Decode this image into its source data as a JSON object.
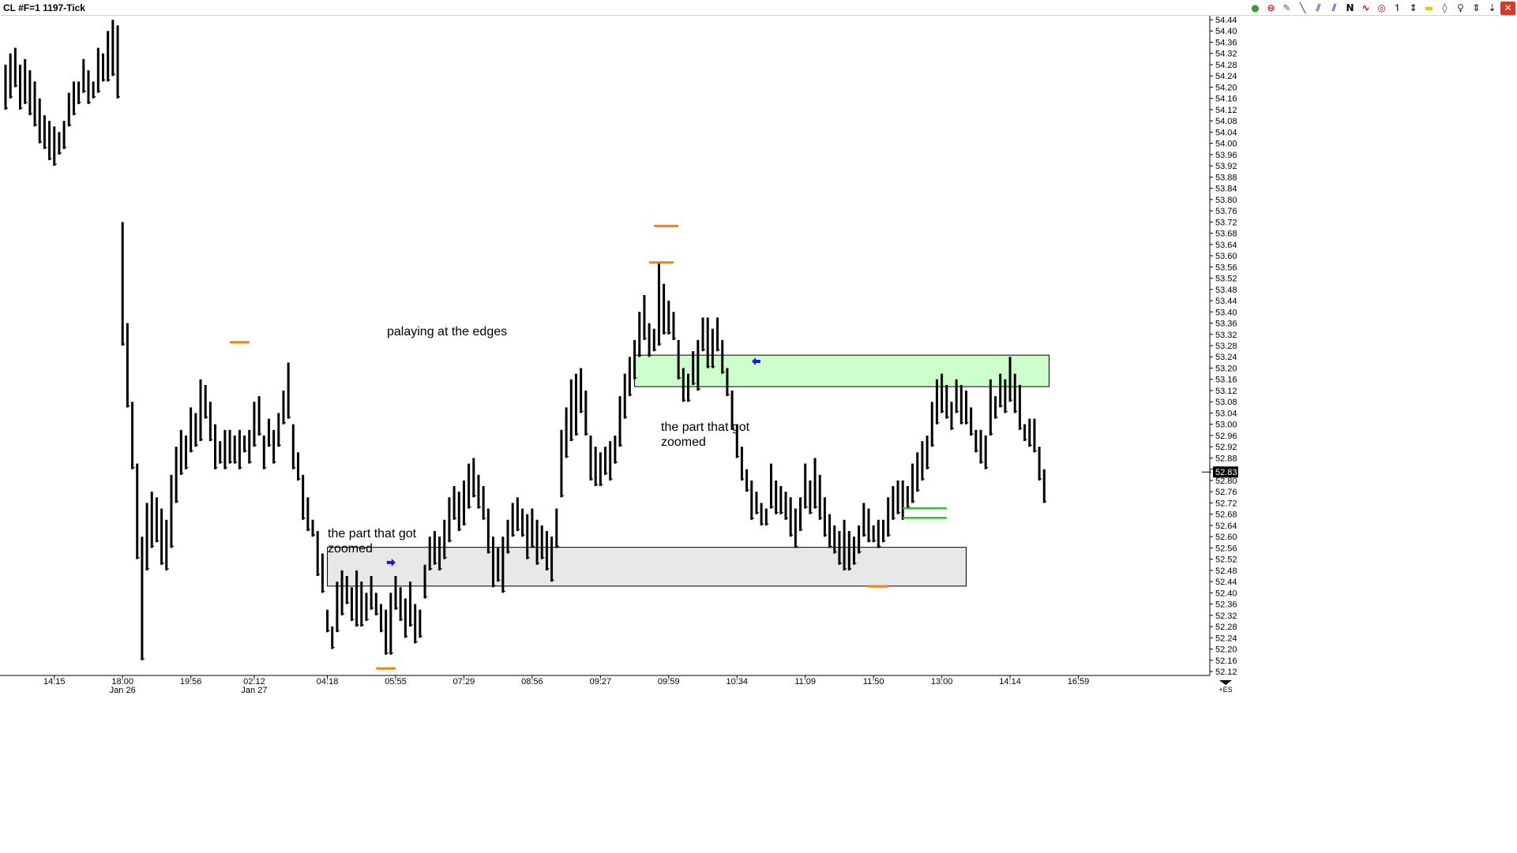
{
  "window": {
    "title": "CL #F=1 1197-Tick",
    "toolbar": [
      {
        "icon": "data-series-icon",
        "glyph": "●",
        "color": "#3a9a3a"
      },
      {
        "icon": "indicators-icon",
        "glyph": "⊖",
        "color": "#cc0000"
      },
      {
        "icon": "pencil-icon",
        "glyph": "✎",
        "color": "#555555"
      },
      {
        "icon": "line-tool-icon",
        "glyph": "╲",
        "color": "#333333"
      },
      {
        "icon": "channel-tool-icon",
        "glyph": "⫽",
        "color": "#7a3fc0"
      },
      {
        "icon": "parallel-lines-icon",
        "glyph": "⫽",
        "color": "#3355cc"
      },
      {
        "icon": "n-tool-icon",
        "glyph": "N",
        "color": "#000000"
      },
      {
        "icon": "regression-icon",
        "glyph": "∿",
        "color": "#cc0000"
      },
      {
        "icon": "circle-tool-icon",
        "glyph": "◎",
        "color": "#cc0000"
      },
      {
        "icon": "vertical-line-icon",
        "glyph": "↿",
        "color": "#333333"
      },
      {
        "icon": "crosshair-icon",
        "glyph": "↕",
        "color": "#333333"
      },
      {
        "icon": "rectangle-tool-icon",
        "glyph": "▬",
        "color": "#e8c800"
      },
      {
        "icon": "price-marker-icon",
        "glyph": "◊",
        "color": "#333333"
      },
      {
        "icon": "zoom-icon",
        "glyph": "♀",
        "color": "#333333"
      },
      {
        "icon": "scroll-icon",
        "glyph": "⇕",
        "color": "#333333"
      },
      {
        "icon": "arrow-tool-icon",
        "glyph": "⇣",
        "color": "#333333"
      },
      {
        "icon": "close-icon",
        "glyph": "✕",
        "color": "#ffffff"
      }
    ]
  },
  "chart_data": {
    "type": "bar",
    "style": "OHLC price bars (no open ticks), black",
    "ylim": [
      52.1,
      54.48
    ],
    "y_ticks": [
      "54.44",
      "54.40",
      "54.36",
      "54.32",
      "54.28",
      "54.24",
      "54.20",
      "54.16",
      "54.12",
      "54.08",
      "54.04",
      "54.00",
      "53.96",
      "53.92",
      "53.88",
      "53.84",
      "53.80",
      "53.76",
      "53.72",
      "53.68",
      "53.64",
      "53.60",
      "53.56",
      "53.52",
      "53.48",
      "53.44",
      "53.40",
      "53.36",
      "53.32",
      "53.28",
      "53.24",
      "53.20",
      "53.16",
      "53.12",
      "53.08",
      "53.04",
      "53.00",
      "52.96",
      "52.92",
      "52.88",
      "52.84",
      "52.80",
      "52.76",
      "52.72",
      "52.68",
      "52.64",
      "52.60",
      "52.56",
      "52.52",
      "52.48",
      "52.44",
      "52.40",
      "52.36",
      "52.32",
      "52.28",
      "52.24",
      "52.20",
      "52.16",
      "52.12"
    ],
    "current_price": "52.83",
    "x_ticks": [
      {
        "label": "14:15",
        "bar": 10
      },
      {
        "label": "18:00",
        "bar": 24,
        "sub": "Jan 26"
      },
      {
        "label": "19:56",
        "bar": 38
      },
      {
        "label": "02:12",
        "bar": 51,
        "sub": "Jan 27"
      },
      {
        "label": "04:18",
        "bar": 66
      },
      {
        "label": "05:55",
        "bar": 80
      },
      {
        "label": "07:29",
        "bar": 94
      },
      {
        "label": "08:56",
        "bar": 108
      },
      {
        "label": "09:27",
        "bar": 122
      },
      {
        "label": "09:59",
        "bar": 136
      },
      {
        "label": "10:34",
        "bar": 150
      },
      {
        "label": "11:09",
        "bar": 164
      },
      {
        "label": "11:50",
        "bar": 178
      },
      {
        "label": "13:00",
        "bar": 192
      },
      {
        "label": "14:14",
        "bar": 206
      },
      {
        "label": "16:59",
        "bar": 220
      }
    ],
    "bars": [
      [
        54.28,
        54.12
      ],
      [
        54.32,
        54.16
      ],
      [
        54.34,
        54.2
      ],
      [
        54.28,
        54.12
      ],
      [
        54.3,
        54.14
      ],
      [
        54.26,
        54.1
      ],
      [
        54.22,
        54.06
      ],
      [
        54.16,
        54.0
      ],
      [
        54.1,
        53.98
      ],
      [
        54.08,
        53.94
      ],
      [
        54.06,
        53.92
      ],
      [
        54.04,
        53.96
      ],
      [
        54.08,
        53.98
      ],
      [
        54.18,
        54.06
      ],
      [
        54.22,
        54.1
      ],
      [
        54.22,
        54.14
      ],
      [
        54.3,
        54.18
      ],
      [
        54.26,
        54.14
      ],
      [
        54.22,
        54.16
      ],
      [
        54.34,
        54.18
      ],
      [
        54.32,
        54.22
      ],
      [
        54.4,
        54.22
      ],
      [
        54.44,
        54.24
      ],
      [
        54.42,
        54.16
      ],
      [
        53.72,
        53.28
      ],
      [
        53.36,
        53.06
      ],
      [
        53.08,
        52.84
      ],
      [
        52.86,
        52.52
      ],
      [
        52.6,
        52.16
      ],
      [
        52.72,
        52.48
      ],
      [
        52.76,
        52.56
      ],
      [
        52.74,
        52.58
      ],
      [
        52.7,
        52.5
      ],
      [
        52.66,
        52.48
      ],
      [
        52.82,
        52.56
      ],
      [
        52.92,
        52.72
      ],
      [
        52.98,
        52.82
      ],
      [
        52.96,
        52.84
      ],
      [
        53.06,
        52.9
      ],
      [
        53.04,
        52.92
      ],
      [
        53.16,
        52.94
      ],
      [
        53.14,
        53.02
      ],
      [
        53.08,
        52.94
      ],
      [
        53.0,
        52.84
      ],
      [
        52.94,
        52.86
      ],
      [
        52.98,
        52.84
      ],
      [
        52.98,
        52.86
      ],
      [
        52.96,
        52.86
      ],
      [
        52.98,
        52.84
      ],
      [
        52.96,
        52.9
      ],
      [
        52.98,
        52.86
      ],
      [
        53.08,
        52.92
      ],
      [
        53.1,
        52.96
      ],
      [
        52.96,
        52.84
      ],
      [
        53.02,
        52.92
      ],
      [
        52.98,
        52.86
      ],
      [
        53.04,
        52.92
      ],
      [
        53.12,
        53.0
      ],
      [
        53.22,
        53.02
      ],
      [
        53.0,
        52.84
      ],
      [
        52.9,
        52.8
      ],
      [
        52.82,
        52.66
      ],
      [
        52.74,
        52.62
      ],
      [
        52.66,
        52.6
      ],
      [
        52.62,
        52.46
      ],
      [
        52.54,
        52.4
      ],
      [
        52.34,
        52.26
      ],
      [
        52.28,
        52.2
      ],
      [
        52.44,
        52.26
      ],
      [
        52.48,
        52.32
      ],
      [
        52.46,
        52.36
      ],
      [
        52.42,
        52.3
      ],
      [
        52.48,
        52.28
      ],
      [
        52.44,
        52.28
      ],
      [
        52.4,
        52.3
      ],
      [
        52.46,
        52.34
      ],
      [
        52.4,
        52.32
      ],
      [
        52.36,
        52.26
      ],
      [
        52.34,
        52.18
      ],
      [
        52.4,
        52.18
      ],
      [
        52.46,
        52.34
      ],
      [
        52.42,
        52.3
      ],
      [
        52.38,
        52.24
      ],
      [
        52.44,
        52.28
      ],
      [
        52.36,
        52.22
      ],
      [
        52.34,
        52.24
      ],
      [
        52.5,
        52.38
      ],
      [
        52.6,
        52.48
      ],
      [
        52.62,
        52.5
      ],
      [
        52.6,
        52.48
      ],
      [
        52.66,
        52.52
      ],
      [
        52.74,
        52.58
      ],
      [
        52.78,
        52.66
      ],
      [
        52.76,
        52.62
      ],
      [
        52.8,
        52.64
      ],
      [
        52.86,
        52.7
      ],
      [
        52.88,
        52.74
      ],
      [
        52.82,
        52.7
      ],
      [
        52.78,
        52.66
      ],
      [
        52.7,
        52.54
      ],
      [
        52.6,
        52.42
      ],
      [
        52.56,
        52.44
      ],
      [
        52.6,
        52.4
      ],
      [
        52.66,
        52.54
      ],
      [
        52.72,
        52.6
      ],
      [
        52.74,
        52.62
      ],
      [
        52.7,
        52.6
      ],
      [
        52.68,
        52.52
      ],
      [
        52.7,
        52.56
      ],
      [
        52.66,
        52.5
      ],
      [
        52.64,
        52.52
      ],
      [
        52.62,
        52.48
      ],
      [
        52.6,
        52.44
      ],
      [
        52.7,
        52.56
      ],
      [
        52.98,
        52.74
      ],
      [
        53.06,
        52.88
      ],
      [
        53.16,
        52.94
      ],
      [
        53.18,
        52.96
      ],
      [
        53.2,
        53.04
      ],
      [
        53.12,
        52.96
      ],
      [
        52.96,
        52.8
      ],
      [
        52.92,
        52.78
      ],
      [
        52.9,
        52.78
      ],
      [
        52.92,
        52.82
      ],
      [
        52.94,
        52.8
      ],
      [
        52.96,
        52.86
      ],
      [
        53.1,
        52.92
      ],
      [
        53.18,
        53.02
      ],
      [
        53.24,
        53.1
      ],
      [
        53.3,
        53.16
      ],
      [
        53.4,
        53.24
      ],
      [
        53.46,
        53.3
      ],
      [
        53.36,
        53.24
      ],
      [
        53.34,
        53.26
      ],
      [
        53.58,
        53.28
      ],
      [
        53.5,
        53.32
      ],
      [
        53.44,
        53.32
      ],
      [
        53.4,
        53.3
      ],
      [
        53.3,
        53.16
      ],
      [
        53.2,
        53.08
      ],
      [
        53.18,
        53.08
      ],
      [
        53.26,
        53.14
      ],
      [
        53.3,
        53.12
      ],
      [
        53.38,
        53.26
      ],
      [
        53.38,
        53.2
      ],
      [
        53.34,
        53.2
      ],
      [
        53.38,
        53.26
      ],
      [
        53.3,
        53.18
      ],
      [
        53.2,
        53.1
      ],
      [
        53.12,
        52.98
      ],
      [
        53.0,
        52.88
      ],
      [
        52.92,
        52.8
      ],
      [
        52.84,
        52.76
      ],
      [
        52.8,
        52.66
      ],
      [
        52.76,
        52.68
      ],
      [
        52.72,
        52.64
      ],
      [
        52.7,
        52.64
      ],
      [
        52.86,
        52.7
      ],
      [
        52.8,
        52.68
      ],
      [
        52.78,
        52.68
      ],
      [
        52.76,
        52.66
      ],
      [
        52.74,
        52.6
      ],
      [
        52.7,
        52.56
      ],
      [
        52.74,
        52.62
      ],
      [
        52.86,
        52.7
      ],
      [
        52.8,
        52.68
      ],
      [
        52.88,
        52.7
      ],
      [
        52.82,
        52.66
      ],
      [
        52.74,
        52.6
      ],
      [
        52.68,
        52.56
      ],
      [
        52.64,
        52.54
      ],
      [
        52.62,
        52.5
      ],
      [
        52.66,
        52.48
      ],
      [
        52.62,
        52.48
      ],
      [
        52.6,
        52.5
      ],
      [
        52.64,
        52.54
      ],
      [
        52.72,
        52.6
      ],
      [
        52.7,
        52.58
      ],
      [
        52.64,
        52.58
      ],
      [
        52.66,
        52.56
      ],
      [
        52.66,
        52.58
      ],
      [
        52.74,
        52.6
      ],
      [
        52.78,
        52.66
      ],
      [
        52.8,
        52.68
      ],
      [
        52.8,
        52.66
      ],
      [
        52.78,
        52.7
      ],
      [
        52.86,
        52.72
      ],
      [
        52.9,
        52.76
      ],
      [
        52.94,
        52.8
      ],
      [
        52.96,
        52.84
      ],
      [
        53.08,
        52.92
      ],
      [
        53.16,
        53.0
      ],
      [
        53.18,
        53.04
      ],
      [
        53.14,
        53.02
      ],
      [
        53.08,
        52.98
      ],
      [
        53.16,
        53.04
      ],
      [
        53.14,
        53.0
      ],
      [
        53.12,
        53.0
      ],
      [
        53.06,
        52.96
      ],
      [
        52.98,
        52.9
      ],
      [
        52.98,
        52.86
      ],
      [
        52.96,
        52.84
      ],
      [
        53.16,
        52.96
      ],
      [
        53.1,
        53.02
      ],
      [
        53.18,
        53.06
      ],
      [
        53.16,
        53.04
      ],
      [
        53.24,
        53.08
      ],
      [
        53.18,
        53.04
      ],
      [
        53.14,
        52.98
      ],
      [
        53.0,
        52.94
      ],
      [
        53.02,
        52.92
      ],
      [
        53.02,
        52.9
      ],
      [
        52.92,
        52.8
      ],
      [
        52.84,
        52.72
      ]
    ],
    "orange_markers": [
      {
        "price": 53.292,
        "bar_from": 46,
        "bar_to": 50
      },
      {
        "price": 53.706,
        "bar_from": 133,
        "bar_to": 138
      },
      {
        "price": 53.576,
        "bar_from": 132,
        "bar_to": 137
      },
      {
        "price": 52.131,
        "bar_from": 76,
        "bar_to": 80
      },
      {
        "price": 52.423,
        "bar_from": 177,
        "bar_to": 181
      }
    ],
    "green_zone": {
      "top": 53.246,
      "bottom": 53.134,
      "bar_from": 129,
      "bar_to": 214
    },
    "gray_zone": {
      "top": 52.562,
      "bottom": 52.424,
      "bar_from": 66,
      "bar_to": 197
    },
    "green_lines": [
      {
        "price": 52.701,
        "bar_from": 184,
        "bar_to": 193
      },
      {
        "price": 52.667,
        "bar_from": 184,
        "bar_to": 193
      }
    ],
    "arrows": [
      {
        "direction": "right",
        "price": 52.508,
        "bar": 79
      },
      {
        "direction": "left",
        "price": 53.224,
        "bar": 154
      }
    ],
    "annotations": {
      "edges": "palaying at the edges",
      "zoom_top": [
        "the part that got",
        "zoomed"
      ],
      "zoom_bottom": [
        "the part that got",
        "zoomed"
      ]
    },
    "corner_label": "+ES"
  }
}
